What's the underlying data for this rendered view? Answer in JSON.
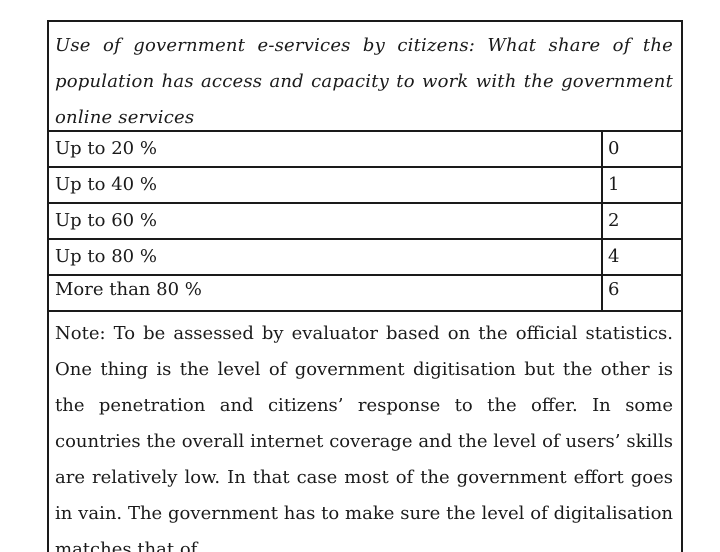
{
  "table": {
    "heading": "Use of government e-services by citizens: What share of the population has access and capacity to work with the government online services",
    "rows": [
      {
        "range": "Up to 20 %",
        "score": "0"
      },
      {
        "range": "Up to 40 %",
        "score": "1"
      },
      {
        "range": "Up to 60 %",
        "score": "2"
      },
      {
        "range": "Up to 80 %",
        "score": "4"
      },
      {
        "range": "More than 80 %",
        "score": "6"
      }
    ],
    "note": "Note: To be assessed by evaluator based on the official statistics. One thing is the level of government digitisation but the other is the penetration and citizens’ response to the offer. In some countries the overall internet coverage and the level of users’ skills are relatively low. In that case most of the government effort goes in vain. The government has to make sure the level of digitalisation matches that of"
  }
}
